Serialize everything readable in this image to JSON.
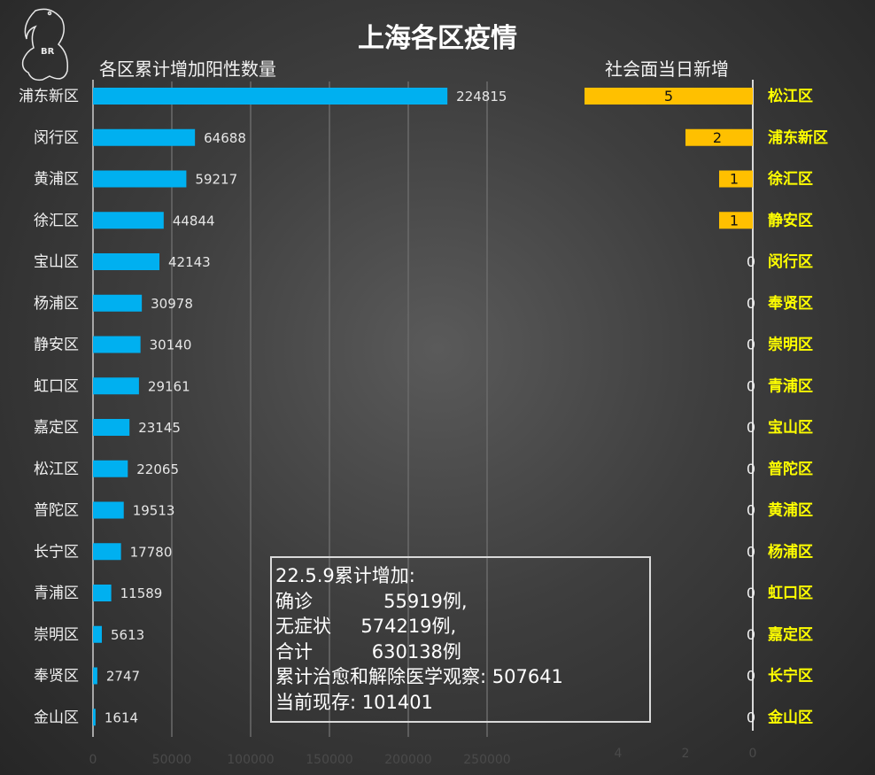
{
  "title": "上海各区疫情",
  "logo_text": "BR",
  "chart_data": [
    {
      "type": "bar",
      "orientation": "horizontal",
      "subtitle": "各区累计增加阳性数量",
      "categories": [
        "浦东新区",
        "闵行区",
        "黄浦区",
        "徐汇区",
        "宝山区",
        "杨浦区",
        "静安区",
        "虹口区",
        "嘉定区",
        "松江区",
        "普陀区",
        "长宁区",
        "青浦区",
        "崇明区",
        "奉贤区",
        "金山区"
      ],
      "values": [
        224815,
        64688,
        59217,
        44844,
        42143,
        30978,
        30140,
        29161,
        23145,
        22065,
        19513,
        17780,
        11589,
        5613,
        2747,
        1614
      ],
      "xlim": [
        0,
        250000
      ],
      "xticks": [
        0,
        50000,
        100000,
        150000,
        200000,
        250000
      ],
      "grid": true,
      "color": "#00b0f0"
    },
    {
      "type": "bar",
      "orientation": "horizontal",
      "reversed_axis": true,
      "subtitle": "社会面当日新增",
      "categories": [
        "松江区",
        "浦东新区",
        "徐汇区",
        "静安区",
        "闵行区",
        "奉贤区",
        "崇明区",
        "青浦区",
        "宝山区",
        "普陀区",
        "黄浦区",
        "杨浦区",
        "虹口区",
        "嘉定区",
        "长宁区",
        "金山区"
      ],
      "values": [
        5,
        2,
        1,
        1,
        0,
        0,
        0,
        0,
        0,
        0,
        0,
        0,
        0,
        0,
        0,
        0
      ],
      "xlim": [
        0,
        5
      ],
      "xticks": [
        0,
        2,
        4
      ],
      "color": "#ffc000",
      "label_color": "#ffff00"
    }
  ],
  "note": {
    "lines": [
      "22.5.9累计增加:",
      "确诊            55919例,",
      "无症状     574219例,",
      "合计          630138例",
      "累计治愈和解除医学观察: 507641",
      "当前现存: 101401"
    ]
  }
}
